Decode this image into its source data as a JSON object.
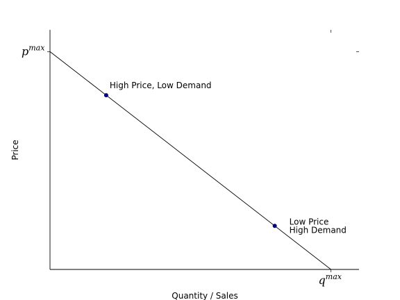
{
  "chart_data": {
    "type": "line",
    "title": "",
    "xlabel": "Quantity / Sales",
    "ylabel": "Price",
    "xlim": [
      0,
      1.1
    ],
    "ylim": [
      0,
      1.1
    ],
    "grid": false,
    "x_ticks": [
      {
        "value": 1.0,
        "base": "q",
        "sup": "max"
      }
    ],
    "y_ticks": [
      {
        "value": 1.0,
        "base": "p",
        "sup": "max"
      }
    ],
    "series": [
      {
        "x": [
          0,
          1
        ],
        "y": [
          1,
          0
        ],
        "color": "#000000"
      }
    ],
    "points": [
      {
        "x": 0.2,
        "y": 0.8,
        "color": "#000080",
        "label_lines": [
          "High Price, Low Demand"
        ]
      },
      {
        "x": 0.8,
        "y": 0.2,
        "color": "#000080",
        "label_lines": [
          "Low Price",
          "High Demand"
        ]
      }
    ]
  }
}
